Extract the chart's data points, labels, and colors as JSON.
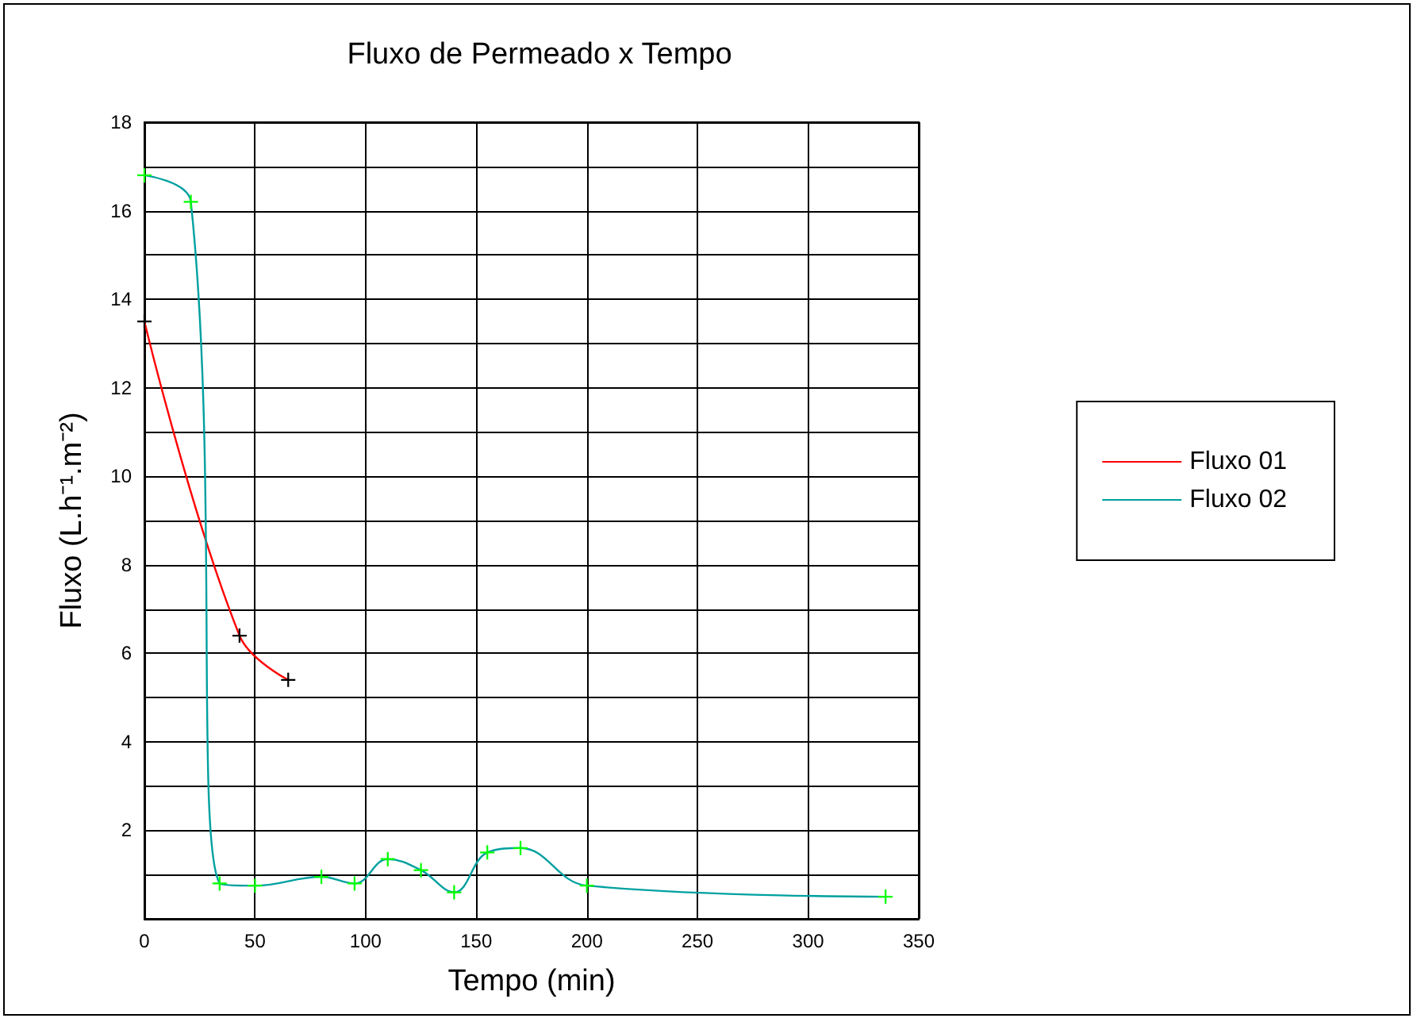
{
  "chart_data": {
    "type": "line",
    "title": "Fluxo de Permeado x Tempo",
    "xlabel": "Tempo (min)",
    "ylabel": "Fluxo (L.h⁻¹.m⁻²)",
    "series": [
      {
        "name": "Fluxo 01",
        "color": "#ff0000",
        "colors": [
          "#000000",
          "#000000",
          "#000000"
        ],
        "x": [
          0,
          43,
          65
        ],
        "values": [
          13.5,
          6.4,
          5.4
        ]
      },
      {
        "name": "Fluxo 02",
        "color": "#00a0a0",
        "colors": [
          "#00ff00",
          "#00ff00",
          "#00ff00",
          "#00ff00",
          "#00ff00",
          "#00ff00",
          "#00ff00",
          "#00ff00",
          "#00ff00",
          "#00ff00",
          "#00ff00",
          "#00ff00",
          "#00ff00"
        ],
        "x": [
          0,
          21,
          34,
          50,
          80,
          95,
          110,
          125,
          140,
          155,
          170,
          200,
          335
        ],
        "values": [
          16.8,
          16.2,
          0.8,
          0.75,
          0.95,
          0.8,
          1.35,
          1.1,
          0.6,
          1.5,
          1.6,
          0.75,
          0.5
        ]
      }
    ],
    "xlim": [
      0,
      350
    ],
    "xticks": [
      0,
      50,
      100,
      150,
      200,
      250,
      300,
      350
    ],
    "ylim": [
      0,
      18
    ],
    "yticks": [
      {
        "value": 0,
        "label": null
      },
      {
        "value": 1,
        "label": null
      },
      2,
      {
        "value": 3,
        "label": null
      },
      4,
      {
        "value": 5,
        "label": null
      },
      6,
      {
        "value": 7,
        "label": null
      },
      8,
      {
        "value": 9,
        "label": null
      },
      10,
      {
        "value": 11,
        "label": null
      },
      12,
      {
        "value": 13,
        "label": null
      },
      14,
      {
        "value": 15,
        "label": null
      },
      16,
      {
        "value": 17,
        "label": null
      },
      18
    ],
    "grid": true,
    "legend": "right",
    "marker": "cross",
    "line_style": "solid"
  }
}
